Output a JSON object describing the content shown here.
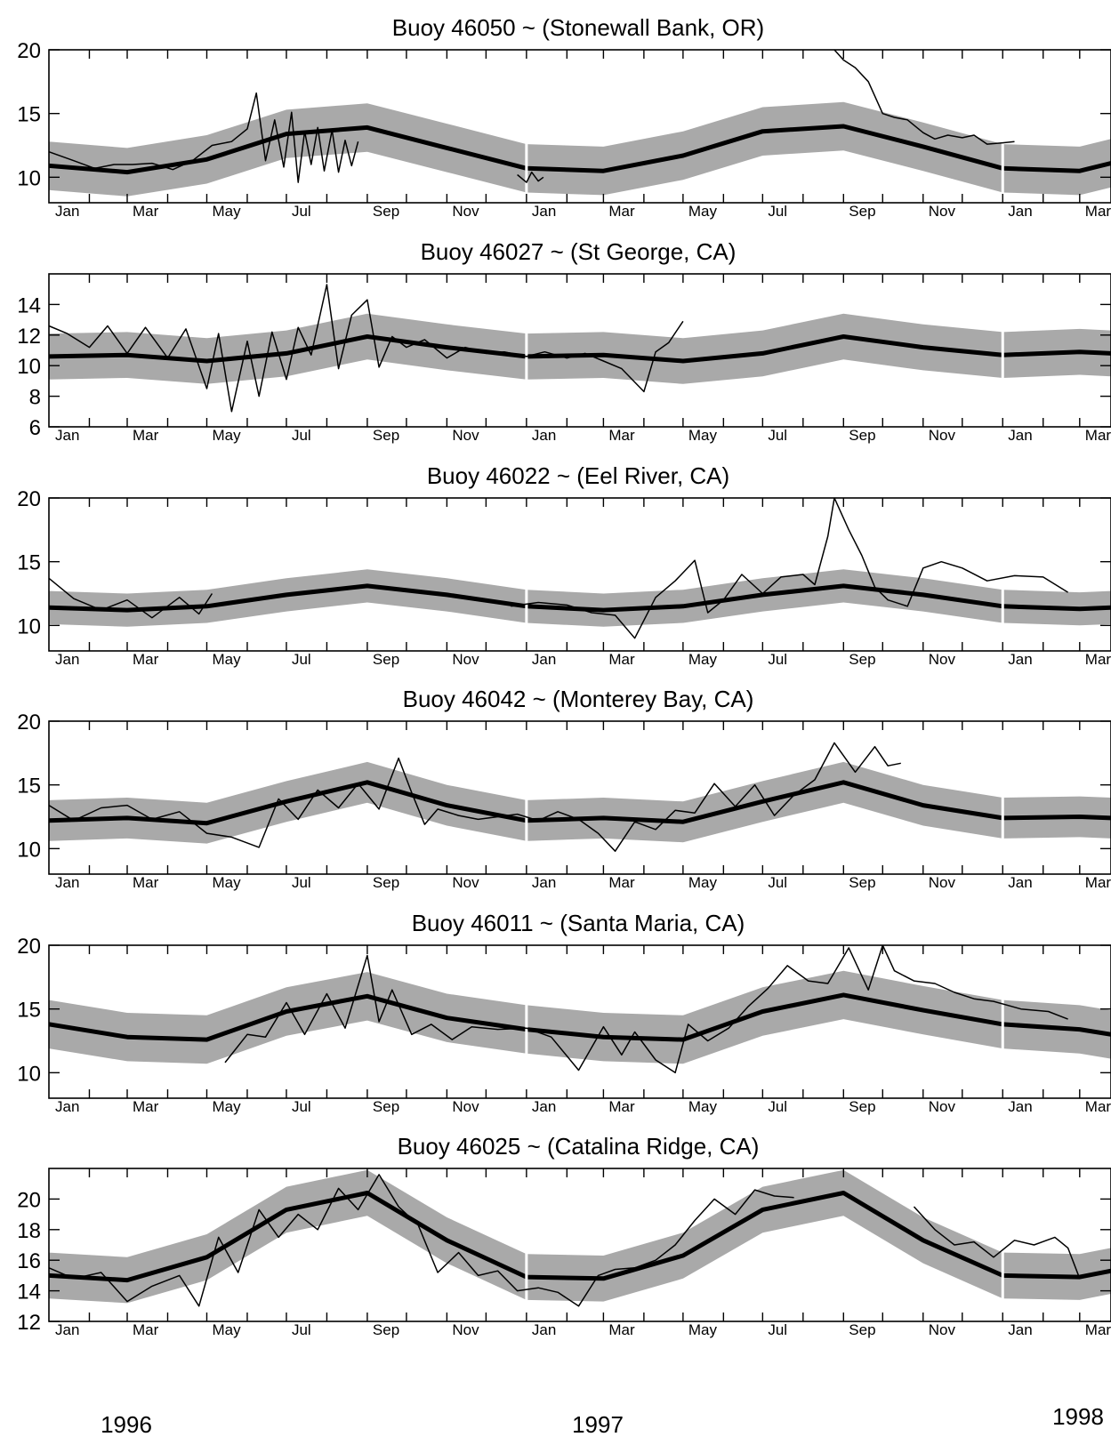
{
  "colors": {
    "band": "#a9a9a9",
    "climatology": "#000000",
    "observed": "#000000",
    "axis": "#000000"
  },
  "month_labels": [
    "Jan",
    "Mar",
    "May",
    "Jul",
    "Sep",
    "Nov",
    "Jan",
    "Mar",
    "May",
    "Jul",
    "Sep",
    "Nov",
    "Jan",
    "Mar"
  ],
  "years": [
    "1996",
    "1997",
    "1998"
  ],
  "chart_data": [
    {
      "type": "line",
      "title": "Buoy 46050 ~ (Stonewall Bank, OR)",
      "xlabel": "",
      "ylabel": "",
      "ylim": [
        8,
        20
      ],
      "yticks": [
        10,
        15,
        20
      ],
      "series": [
        {
          "role": "climatology",
          "x": [
            "1996-01-01",
            "1996-03-01",
            "1996-05-01",
            "1996-07-01",
            "1996-09-01",
            "1996-11-01",
            "1997-01-01",
            "1997-03-01",
            "1997-05-01",
            "1997-07-01",
            "1997-09-01",
            "1997-11-01",
            "1998-01-01",
            "1998-03-01",
            "1998-03-25"
          ],
          "y": [
            10.9,
            10.4,
            11.4,
            13.4,
            13.9,
            12.3,
            10.7,
            10.5,
            11.7,
            13.6,
            14.0,
            12.4,
            10.7,
            10.5,
            11.1
          ],
          "band": 1.9
        },
        {
          "role": "observed",
          "x": [
            "1996-01-01",
            "1996-01-20",
            "1996-02-05",
            "1996-02-20",
            "1996-03-05",
            "1996-03-20",
            "1996-04-05",
            "1996-04-20",
            "1996-05-05",
            "1996-05-20",
            "1996-06-01",
            "1996-06-08",
            "1996-06-15",
            "1996-06-22",
            "1996-06-29",
            "1996-07-05",
            "1996-07-10",
            "1996-07-15",
            "1996-07-20",
            "1996-07-25",
            "1996-07-30",
            "1996-08-05",
            "1996-08-10",
            "1996-08-15",
            "1996-08-20",
            "1996-08-25"
          ],
          "y": [
            12.0,
            11.3,
            10.7,
            11.0,
            11.0,
            11.1,
            10.6,
            11.3,
            12.5,
            12.8,
            13.8,
            16.6,
            11.3,
            14.5,
            10.8,
            15.1,
            9.6,
            13.6,
            11.0,
            13.9,
            10.5,
            13.7,
            10.4,
            12.9,
            10.9,
            12.8
          ]
        },
        {
          "role": "observed",
          "x": [
            "1996-12-25",
            "1997-01-01",
            "1997-01-05",
            "1997-01-10",
            "1997-01-14"
          ],
          "y": [
            10.2,
            9.6,
            10.4,
            9.7,
            10.0
          ]
        },
        {
          "role": "observed",
          "x": [
            "1997-08-25",
            "1997-09-01",
            "1997-09-10",
            "1997-09-20",
            "1997-10-01",
            "1997-10-10",
            "1997-10-20",
            "1997-11-01",
            "1997-11-10",
            "1997-11-20",
            "1997-12-01",
            "1997-12-10",
            "1997-12-20",
            "1998-01-01",
            "1998-01-10"
          ],
          "y": [
            20.0,
            19.2,
            18.6,
            17.5,
            15.0,
            14.7,
            14.5,
            13.5,
            13.0,
            13.3,
            13.1,
            13.3,
            12.6,
            12.7,
            12.8
          ]
        }
      ]
    },
    {
      "type": "line",
      "title": "Buoy 46027 ~ (St George, CA)",
      "xlabel": "",
      "ylabel": "",
      "ylim": [
        6,
        16
      ],
      "yticks": [
        6,
        8,
        10,
        12,
        14
      ],
      "series": [
        {
          "role": "climatology",
          "x": [
            "1996-01-01",
            "1996-03-01",
            "1996-05-01",
            "1996-07-01",
            "1996-09-01",
            "1996-11-01",
            "1997-01-01",
            "1997-03-01",
            "1997-05-01",
            "1997-07-01",
            "1997-09-01",
            "1997-11-01",
            "1998-01-01",
            "1998-03-01",
            "1998-03-25"
          ],
          "y": [
            10.6,
            10.7,
            10.3,
            10.8,
            11.9,
            11.2,
            10.6,
            10.7,
            10.3,
            10.8,
            11.9,
            11.2,
            10.7,
            10.9,
            10.8
          ],
          "band": 1.5
        },
        {
          "role": "observed",
          "x": [
            "1996-01-01",
            "1996-01-15",
            "1996-02-01",
            "1996-02-15",
            "1996-03-01",
            "1996-03-15",
            "1996-04-01",
            "1996-04-15",
            "1996-05-01",
            "1996-05-10",
            "1996-05-20",
            "1996-06-01",
            "1996-06-10",
            "1996-06-20",
            "1996-07-01",
            "1996-07-10",
            "1996-07-20",
            "1996-08-01",
            "1996-08-10",
            "1996-08-20",
            "1996-09-01",
            "1996-09-10",
            "1996-09-20",
            "1996-10-01",
            "1996-10-15",
            "1996-11-01",
            "1996-11-15",
            "1996-12-01",
            "1996-12-15",
            "1997-01-01",
            "1997-01-15",
            "1997-02-01",
            "1997-02-15",
            "1997-03-01",
            "1997-03-15",
            "1997-04-01",
            "1997-04-10",
            "1997-04-20",
            "1997-05-01"
          ],
          "y": [
            12.6,
            12.1,
            11.2,
            12.6,
            10.8,
            12.5,
            10.5,
            12.4,
            8.5,
            12.1,
            7.0,
            11.6,
            8.0,
            12.2,
            9.1,
            12.5,
            10.7,
            15.3,
            9.8,
            13.3,
            14.3,
            9.9,
            11.9,
            11.2,
            11.7,
            10.5,
            11.2,
            10.8,
            10.9,
            10.6,
            10.9,
            10.5,
            10.8,
            10.3,
            9.8,
            8.3,
            10.9,
            11.5,
            12.9
          ]
        }
      ]
    },
    {
      "type": "line",
      "title": "Buoy 46022 ~ (Eel River, CA)",
      "xlabel": "",
      "ylabel": "",
      "ylim": [
        8,
        20
      ],
      "yticks": [
        10,
        15,
        20
      ],
      "series": [
        {
          "role": "climatology",
          "x": [
            "1996-01-01",
            "1996-03-01",
            "1996-05-01",
            "1996-07-01",
            "1996-09-01",
            "1996-11-01",
            "1997-01-01",
            "1997-03-01",
            "1997-05-01",
            "1997-07-01",
            "1997-09-01",
            "1997-11-01",
            "1998-01-01",
            "1998-03-01",
            "1998-03-25"
          ],
          "y": [
            11.4,
            11.2,
            11.5,
            12.4,
            13.1,
            12.4,
            11.5,
            11.2,
            11.5,
            12.4,
            13.1,
            12.4,
            11.5,
            11.3,
            11.4
          ],
          "band": 1.3
        },
        {
          "role": "observed",
          "x": [
            "1996-01-01",
            "1996-01-20",
            "1996-02-10",
            "1996-03-01",
            "1996-03-20",
            "1996-04-10",
            "1996-04-25",
            "1996-05-05"
          ],
          "y": [
            13.7,
            12.1,
            11.2,
            12.0,
            10.6,
            12.2,
            10.9,
            12.5
          ]
        },
        {
          "role": "observed",
          "x": [
            "1996-12-20",
            "1997-01-10",
            "1997-02-01",
            "1997-02-20",
            "1997-03-10",
            "1997-03-25",
            "1997-04-10",
            "1997-04-25",
            "1997-05-10",
            "1997-05-20",
            "1997-06-01",
            "1997-06-15",
            "1997-07-01",
            "1997-07-15",
            "1997-08-01",
            "1997-08-10",
            "1997-08-20",
            "1997-08-25",
            "1997-09-05",
            "1997-09-15",
            "1997-09-25",
            "1997-10-05",
            "1997-10-20",
            "1997-11-01",
            "1997-11-15",
            "1997-12-01",
            "1997-12-20",
            "1998-01-10",
            "1998-02-01",
            "1998-02-20"
          ],
          "y": [
            11.5,
            11.8,
            11.6,
            11.0,
            10.8,
            9.0,
            12.2,
            13.5,
            15.1,
            11.0,
            12.0,
            14.0,
            12.5,
            13.8,
            14.0,
            13.2,
            17.0,
            20.0,
            17.5,
            15.5,
            13.0,
            12.0,
            11.5,
            14.5,
            15.0,
            14.5,
            13.5,
            13.9,
            13.8,
            12.6
          ]
        }
      ]
    },
    {
      "type": "line",
      "title": "Buoy 46042 ~ (Monterey Bay, CA)",
      "xlabel": "",
      "ylabel": "",
      "ylim": [
        8,
        20
      ],
      "yticks": [
        10,
        15,
        20
      ],
      "series": [
        {
          "role": "climatology",
          "x": [
            "1996-01-01",
            "1996-03-01",
            "1996-05-01",
            "1996-07-01",
            "1996-09-01",
            "1996-11-01",
            "1997-01-01",
            "1997-03-01",
            "1997-05-01",
            "1997-07-01",
            "1997-09-01",
            "1997-11-01",
            "1998-01-01",
            "1998-03-01",
            "1998-03-25"
          ],
          "y": [
            12.2,
            12.4,
            12.0,
            13.7,
            15.2,
            13.4,
            12.2,
            12.4,
            12.1,
            13.7,
            15.2,
            13.4,
            12.4,
            12.5,
            12.4
          ],
          "band": 1.6
        },
        {
          "role": "observed",
          "x": [
            "1996-01-01",
            "1996-01-20",
            "1996-02-10",
            "1996-03-01",
            "1996-03-20",
            "1996-04-10",
            "1996-05-01",
            "1996-05-20",
            "1996-06-10",
            "1996-06-25",
            "1996-07-10",
            "1996-07-25",
            "1996-08-10",
            "1996-08-25",
            "1996-09-10",
            "1996-09-25",
            "1996-10-05",
            "1996-10-15",
            "1996-10-25",
            "1996-11-10",
            "1996-11-25",
            "1996-12-10",
            "1996-12-25",
            "1997-01-10",
            "1997-01-25",
            "1997-02-10",
            "1997-02-25",
            "1997-03-10",
            "1997-03-25",
            "1997-04-10",
            "1997-04-25",
            "1997-05-10",
            "1997-05-25",
            "1997-06-10",
            "1997-06-25",
            "1997-07-10",
            "1997-07-25",
            "1997-08-10",
            "1997-08-25",
            "1997-09-10",
            "1997-09-25",
            "1997-10-05",
            "1997-10-15"
          ],
          "y": [
            13.4,
            12.2,
            13.2,
            13.4,
            12.3,
            12.9,
            11.2,
            10.9,
            10.1,
            13.9,
            12.3,
            14.6,
            13.2,
            15.1,
            13.1,
            17.1,
            14.4,
            11.9,
            13.1,
            12.6,
            12.3,
            12.5,
            12.7,
            12.2,
            12.9,
            12.3,
            11.2,
            9.8,
            12.1,
            11.5,
            13.0,
            12.8,
            15.1,
            13.3,
            15.0,
            12.6,
            14.2,
            15.4,
            18.3,
            16.0,
            18.0,
            16.5,
            16.7
          ]
        }
      ]
    },
    {
      "type": "line",
      "title": "Buoy 46011 ~ (Santa Maria, CA)",
      "xlabel": "",
      "ylabel": "",
      "ylim": [
        8,
        20
      ],
      "yticks": [
        10,
        15,
        20
      ],
      "series": [
        {
          "role": "climatology",
          "x": [
            "1996-01-01",
            "1996-03-01",
            "1996-05-01",
            "1996-07-01",
            "1996-09-01",
            "1996-11-01",
            "1997-01-01",
            "1997-03-01",
            "1997-05-01",
            "1997-07-01",
            "1997-09-01",
            "1997-11-01",
            "1998-01-01",
            "1998-03-01",
            "1998-03-25"
          ],
          "y": [
            13.8,
            12.8,
            12.6,
            14.8,
            16.0,
            14.3,
            13.4,
            12.8,
            12.6,
            14.8,
            16.1,
            14.9,
            13.8,
            13.4,
            13.0
          ],
          "band": 1.9
        },
        {
          "role": "observed",
          "x": [
            "1996-05-15",
            "1996-06-01",
            "1996-06-15",
            "1996-07-01",
            "1996-07-15",
            "1996-08-01",
            "1996-08-15",
            "1996-09-01",
            "1996-09-10",
            "1996-09-20",
            "1996-10-05",
            "1996-10-20",
            "1996-11-05",
            "1996-11-20",
            "1996-12-10",
            "1997-01-01",
            "1997-01-20",
            "1997-02-10",
            "1997-03-01",
            "1997-03-15",
            "1997-03-25",
            "1997-04-10",
            "1997-04-25",
            "1997-05-05",
            "1997-05-20",
            "1997-06-05",
            "1997-06-20",
            "1997-07-05",
            "1997-07-20",
            "1997-08-05",
            "1997-08-20",
            "1997-09-05",
            "1997-09-20",
            "1997-10-01",
            "1997-10-10",
            "1997-10-25",
            "1997-11-10",
            "1997-11-25",
            "1997-12-10",
            "1997-12-25",
            "1998-01-15",
            "1998-02-05",
            "1998-02-20"
          ],
          "y": [
            10.8,
            13.0,
            12.8,
            15.5,
            13.0,
            16.2,
            13.5,
            19.2,
            14.0,
            16.5,
            13.0,
            13.8,
            12.6,
            13.6,
            13.4,
            13.5,
            12.8,
            10.2,
            13.6,
            11.4,
            13.2,
            11.0,
            10.0,
            13.8,
            12.5,
            13.5,
            15.2,
            16.6,
            18.4,
            17.2,
            17.0,
            19.8,
            16.5,
            20.0,
            18.0,
            17.2,
            17.0,
            16.3,
            15.8,
            15.6,
            15.0,
            14.8,
            14.2
          ]
        }
      ]
    },
    {
      "type": "line",
      "title": "Buoy 46025 ~ (Catalina Ridge, CA)",
      "xlabel": "",
      "ylabel": "",
      "ylim": [
        12,
        22
      ],
      "yticks": [
        12,
        14,
        16,
        18,
        20
      ],
      "series": [
        {
          "role": "climatology",
          "x": [
            "1996-01-01",
            "1996-03-01",
            "1996-05-01",
            "1996-07-01",
            "1996-09-01",
            "1996-11-01",
            "1997-01-01",
            "1997-03-01",
            "1997-05-01",
            "1997-07-01",
            "1997-09-01",
            "1997-11-01",
            "1998-01-01",
            "1998-03-01",
            "1998-03-25"
          ],
          "y": [
            15.0,
            14.7,
            16.2,
            19.3,
            20.4,
            17.3,
            14.9,
            14.8,
            16.3,
            19.3,
            20.4,
            17.3,
            15.0,
            14.9,
            15.3
          ],
          "band": 1.5
        },
        {
          "role": "observed",
          "x": [
            "1996-01-01",
            "1996-01-20",
            "1996-02-10",
            "1996-03-01",
            "1996-03-20",
            "1996-04-10",
            "1996-04-25",
            "1996-05-10",
            "1996-05-25",
            "1996-06-10",
            "1996-06-25",
            "1996-07-10",
            "1996-07-25",
            "1996-08-10",
            "1996-08-25",
            "1996-09-10",
            "1996-09-25",
            "1996-10-10",
            "1996-10-25",
            "1996-11-10",
            "1996-11-25",
            "1996-12-10",
            "1996-12-25",
            "1997-01-10",
            "1997-01-25",
            "1997-02-10",
            "1997-02-25",
            "1997-03-10",
            "1997-03-25",
            "1997-04-10",
            "1997-04-25",
            "1997-05-10",
            "1997-05-25",
            "1997-06-10",
            "1997-06-25",
            "1997-07-10",
            "1997-07-25"
          ],
          "y": [
            15.5,
            14.8,
            15.2,
            13.3,
            14.3,
            15.0,
            13.0,
            17.5,
            15.2,
            19.3,
            17.5,
            19.0,
            18.0,
            20.7,
            19.3,
            21.6,
            19.5,
            18.3,
            15.2,
            16.5,
            15.0,
            15.3,
            14.0,
            14.2,
            13.9,
            13.0,
            15.0,
            15.4,
            15.5,
            16.0,
            17.0,
            18.6,
            20.0,
            19.0,
            20.6,
            20.2,
            20.1
          ]
        },
        {
          "role": "observed",
          "x": [
            "1997-10-25",
            "1997-11-10",
            "1997-11-25",
            "1997-12-10",
            "1997-12-25",
            "1998-01-10",
            "1998-01-25",
            "1998-02-10",
            "1998-02-20",
            "1998-03-01"
          ],
          "y": [
            19.5,
            18.0,
            17.0,
            17.2,
            16.2,
            17.3,
            17.0,
            17.5,
            16.8,
            14.8
          ]
        }
      ]
    }
  ]
}
